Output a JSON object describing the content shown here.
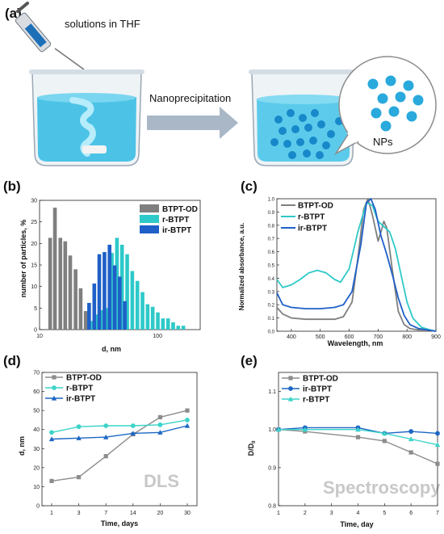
{
  "colors": {
    "gray": "#7f7f7f",
    "cyan": "#2ec9c9",
    "blue": "#1f5fc8",
    "dlsGray": "#8c8c8c",
    "teal": "#3cd3c8",
    "darkBlue": "#1d67c4"
  },
  "panel_a": {
    "label": "(a)",
    "syringe_caption": "solutions in THF",
    "arrow_caption": "Nanoprecipitation",
    "bubble_caption": "NPs",
    "icons": [
      "syringe-icon",
      "beaker-icon",
      "arrow-right-icon",
      "speech-bubble-icon"
    ]
  },
  "chart_data": [
    {
      "panel": "(b)",
      "type": "bar",
      "xlabel": "d, nm",
      "ylabel": "number of particles, %",
      "xscale": "log",
      "xlim": [
        10,
        230
      ],
      "ylim": [
        0,
        30
      ],
      "xticks": [
        10,
        100
      ],
      "yticks": [
        0,
        5,
        10,
        15,
        20,
        25,
        30
      ],
      "legend": "top-right",
      "series": [
        {
          "name": "BTPT-OD",
          "color": "#7f7f7f",
          "x": [
            12.3,
            13.5,
            15.0,
            16.5,
            18.2,
            20.2,
            22.3,
            24.6,
            27.2
          ],
          "values": [
            21.3,
            28.3,
            21.3,
            20.5,
            17.2,
            14.0,
            9.6,
            4.3,
            1.1
          ]
        },
        {
          "name": "r-BTPT",
          "color": "#2ec9c9",
          "x": [
            27.5,
            30.4,
            33.6,
            37.1,
            41.0,
            45.3,
            50.0,
            55.3,
            61.1,
            67.5,
            74.6,
            82.4,
            91.0,
            100.6,
            111.1,
            122.8,
            135.6,
            149.8,
            165.5
          ],
          "values": [
            2.0,
            3.5,
            4.5,
            5.0,
            17.8,
            21.3,
            19.7,
            17.5,
            13.6,
            11.3,
            8.7,
            5.9,
            5.3,
            4.0,
            2.6,
            2.6,
            1.7,
            0.9,
            0.9
          ]
        },
        {
          "name": "ir-BTPT",
          "color": "#1f5fc8",
          "x": [
            26.3,
            29.1,
            32.1,
            35.5,
            39.2,
            43.3,
            47.8,
            52.8
          ],
          "values": [
            6.2,
            10.7,
            17.5,
            18.0,
            19.7,
            14.9,
            12.3,
            6.6
          ]
        }
      ]
    },
    {
      "panel": "(c)",
      "type": "line",
      "xlabel": "Wavelength, nm",
      "ylabel": "Normalized absorbance, a.u.",
      "xlim": [
        350,
        900
      ],
      "ylim": [
        0,
        1.0
      ],
      "xticks": [
        400,
        500,
        600,
        700,
        800,
        900
      ],
      "yticks": [
        0.0,
        0.1,
        0.2,
        0.3,
        0.4,
        0.5,
        0.6,
        0.7,
        0.8,
        0.9,
        1.0
      ],
      "legend": "top-left",
      "series": [
        {
          "name": "BTPT-OD",
          "color": "#7f7f7f",
          "x": [
            350,
            370,
            400,
            450,
            500,
            550,
            580,
            610,
            630,
            650,
            665,
            680,
            700,
            710,
            720,
            730,
            750,
            770,
            790,
            810,
            840,
            870,
            900
          ],
          "y": [
            0.18,
            0.13,
            0.1,
            0.09,
            0.09,
            0.09,
            0.11,
            0.22,
            0.55,
            0.92,
            1.0,
            0.88,
            0.68,
            0.75,
            0.83,
            0.78,
            0.45,
            0.15,
            0.05,
            0.02,
            0.01,
            0.01,
            0.0
          ]
        },
        {
          "name": "r-BTPT",
          "color": "#2ec9c9",
          "x": [
            350,
            370,
            400,
            430,
            460,
            490,
            520,
            550,
            570,
            600,
            630,
            660,
            680,
            700,
            720,
            740,
            760,
            780,
            800,
            820,
            850,
            880,
            900
          ],
          "y": [
            0.39,
            0.33,
            0.35,
            0.39,
            0.44,
            0.46,
            0.44,
            0.39,
            0.37,
            0.47,
            0.75,
            0.97,
            0.95,
            0.83,
            0.79,
            0.75,
            0.62,
            0.42,
            0.22,
            0.1,
            0.03,
            0.01,
            0.0
          ]
        },
        {
          "name": "ir-BTPT",
          "color": "#1f5fc8",
          "x": [
            350,
            370,
            400,
            450,
            500,
            550,
            580,
            610,
            640,
            660,
            675,
            690,
            710,
            730,
            750,
            770,
            790,
            810,
            840,
            870,
            900
          ],
          "y": [
            0.29,
            0.2,
            0.18,
            0.17,
            0.17,
            0.18,
            0.2,
            0.3,
            0.65,
            0.97,
            1.0,
            0.92,
            0.72,
            0.58,
            0.42,
            0.25,
            0.12,
            0.05,
            0.02,
            0.01,
            0.0
          ]
        }
      ]
    },
    {
      "panel": "(d)",
      "type": "line",
      "xlabel": "Time, days",
      "ylabel": "d, nm",
      "categories": [
        "1",
        "3",
        "7",
        "14",
        "20",
        "30"
      ],
      "ylim": [
        0,
        70
      ],
      "yticks": [
        0,
        10,
        20,
        30,
        40,
        50,
        60,
        70
      ],
      "legend": "top-left",
      "watermark": "DLS",
      "series": [
        {
          "name": "BTPT-OD",
          "color": "#8c8c8c",
          "marker": "square",
          "values": [
            13,
            15,
            26,
            37.5,
            46.5,
            50
          ]
        },
        {
          "name": "r-BTPT",
          "color": "#3cd3c8",
          "marker": "circle",
          "values": [
            38.5,
            41.5,
            42,
            42,
            42.5,
            45
          ]
        },
        {
          "name": "ir-BTPT",
          "color": "#1d67c4",
          "marker": "triangle",
          "values": [
            35,
            35.5,
            36,
            38,
            38.5,
            42
          ]
        }
      ]
    },
    {
      "panel": "(e)",
      "type": "line",
      "xlabel": "Time, day",
      "ylabel": "D/D",
      "ylabel_sub": "0",
      "x": [
        1,
        2,
        3,
        4,
        5,
        6,
        7
      ],
      "xlim": [
        1,
        7
      ],
      "ylim": [
        0.8,
        1.15
      ],
      "yticks": [
        "0.8",
        "0.9",
        "1.0",
        "1.1"
      ],
      "legend": "top-left",
      "watermark": "Spectroscopy",
      "series": [
        {
          "name": "BTPT-OD",
          "color": "#8c8c8c",
          "marker": "square",
          "x": [
            1,
            2,
            4,
            5,
            6,
            7
          ],
          "values": [
            1.0,
            0.995,
            0.98,
            0.97,
            0.94,
            0.91
          ]
        },
        {
          "name": "ir-BTPT",
          "color": "#1d67c4",
          "marker": "circle",
          "x": [
            1,
            2,
            4,
            5,
            6,
            7
          ],
          "values": [
            1.0,
            1.005,
            1.005,
            0.99,
            0.995,
            0.99
          ]
        },
        {
          "name": "r-BTPT",
          "color": "#3cd3c8",
          "marker": "triangle",
          "x": [
            1,
            2,
            4,
            5,
            6,
            7
          ],
          "values": [
            1.0,
            1.0,
            1.0,
            0.99,
            0.975,
            0.96
          ]
        }
      ]
    }
  ]
}
